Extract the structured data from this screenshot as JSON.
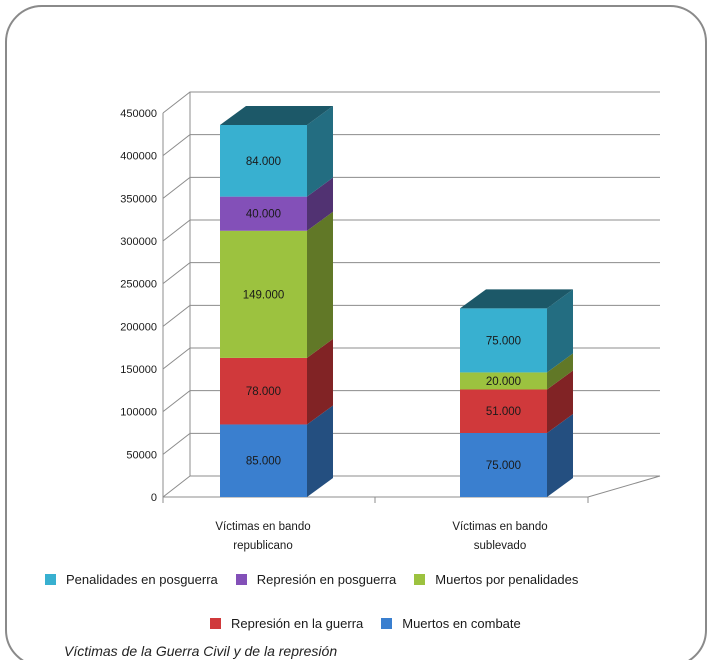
{
  "caption": "Víctimas de la Guerra Civil y de la represión",
  "chart_data": {
    "type": "bar",
    "stacked": true,
    "three_d": true,
    "categories": [
      {
        "line1": "Víctimas en bando",
        "line2": "republicano"
      },
      {
        "line1": "Víctimas en bando",
        "line2": "sublevado"
      }
    ],
    "series": [
      {
        "name": "Muertos en combate",
        "values": [
          85000,
          75000
        ],
        "labels": [
          "85.000",
          "75.000"
        ]
      },
      {
        "name": "Represión en la guerra",
        "values": [
          78000,
          51000
        ],
        "labels": [
          "78.000",
          "51.000"
        ]
      },
      {
        "name": "Muertos por penalidades",
        "values": [
          149000,
          20000
        ],
        "labels": [
          "149.000",
          "20.000"
        ]
      },
      {
        "name": "Represión en posguerra",
        "values": [
          40000,
          0
        ],
        "labels": [
          "40.000",
          ""
        ]
      },
      {
        "name": "Penalidades en posguerra",
        "values": [
          84000,
          75000
        ],
        "labels": [
          "84.000",
          "75.000"
        ]
      }
    ],
    "colors": {
      "Muertos en combate": "#3a7fcf",
      "Represión en la guerra": "#d0393b",
      "Muertos por penalidades": "#9cc23f",
      "Represión en posguerra": "#8350b8",
      "Penalidades en posguerra": "#38b0d0"
    },
    "yticks": [
      "0",
      "50000",
      "100000",
      "150000",
      "200000",
      "250000",
      "300000",
      "350000",
      "400000",
      "450000"
    ],
    "ylim": [
      0,
      450000
    ],
    "grid": true,
    "legend_position": "bottom",
    "legend_rows": [
      [
        "Penalidades en posguerra",
        "Represión en posguerra",
        "Muertos por penalidades"
      ],
      [
        "Represión en la guerra",
        "Muertos en combate"
      ]
    ]
  }
}
